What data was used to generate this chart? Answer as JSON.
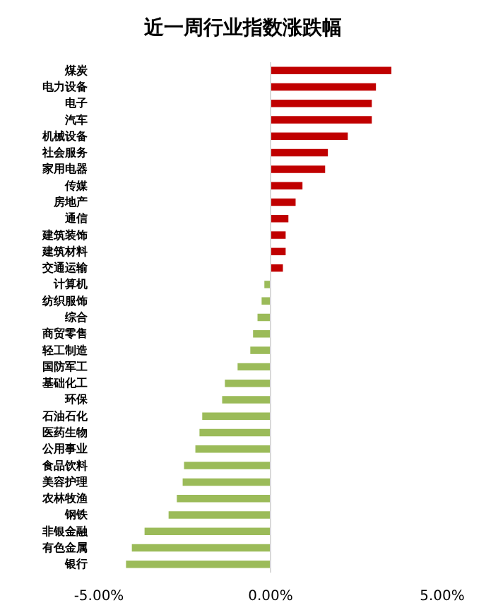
{
  "chart_data": {
    "type": "bar",
    "orientation": "horizontal",
    "title": "近一周行业指数涨跌幅",
    "categories": [
      "煤炭",
      "电力设备",
      "电子",
      "汽车",
      "机械设备",
      "社会服务",
      "家用电器",
      "传媒",
      "房地产",
      "通信",
      "建筑装饰",
      "建筑材料",
      "交通运输",
      "计算机",
      "纺织服饰",
      "综合",
      "商贸零售",
      "轻工制造",
      "国防军工",
      "基础化工",
      "环保",
      "石油石化",
      "医药生物",
      "公用事业",
      "食品饮料",
      "美容护理",
      "农林牧渔",
      "钢铁",
      "非银金融",
      "有色金属",
      "银行"
    ],
    "values": [
      3.52,
      3.07,
      2.95,
      2.95,
      2.25,
      1.67,
      1.59,
      0.93,
      0.73,
      0.52,
      0.44,
      0.44,
      0.36,
      -0.18,
      -0.26,
      -0.38,
      -0.51,
      -0.59,
      -0.96,
      -1.33,
      -1.41,
      -1.99,
      -2.07,
      -2.19,
      -2.52,
      -2.56,
      -2.73,
      -2.97,
      -3.67,
      -4.04,
      -4.21
    ],
    "colors": [
      "#c00000",
      "#c00000",
      "#c00000",
      "#c00000",
      "#c00000",
      "#c00000",
      "#c00000",
      "#c00000",
      "#c00000",
      "#c00000",
      "#c00000",
      "#c00000",
      "#c00000",
      "#9bbb59",
      "#9bbb59",
      "#9bbb59",
      "#9bbb59",
      "#9bbb59",
      "#9bbb59",
      "#9bbb59",
      "#9bbb59",
      "#9bbb59",
      "#9bbb59",
      "#9bbb59",
      "#9bbb59",
      "#9bbb59",
      "#9bbb59",
      "#9bbb59",
      "#9bbb59",
      "#9bbb59",
      "#9bbb59"
    ],
    "xlim": [
      -5,
      5
    ],
    "xticks": [
      {
        "value": -5,
        "label": "-5.00%"
      },
      {
        "value": 0,
        "label": "0.00%"
      },
      {
        "value": 5,
        "label": "5.00%"
      }
    ],
    "ref_lines": [
      {
        "axis": "x",
        "value": 0,
        "color": "#d9d9d9",
        "line_style": "solid"
      }
    ],
    "grid": false
  }
}
